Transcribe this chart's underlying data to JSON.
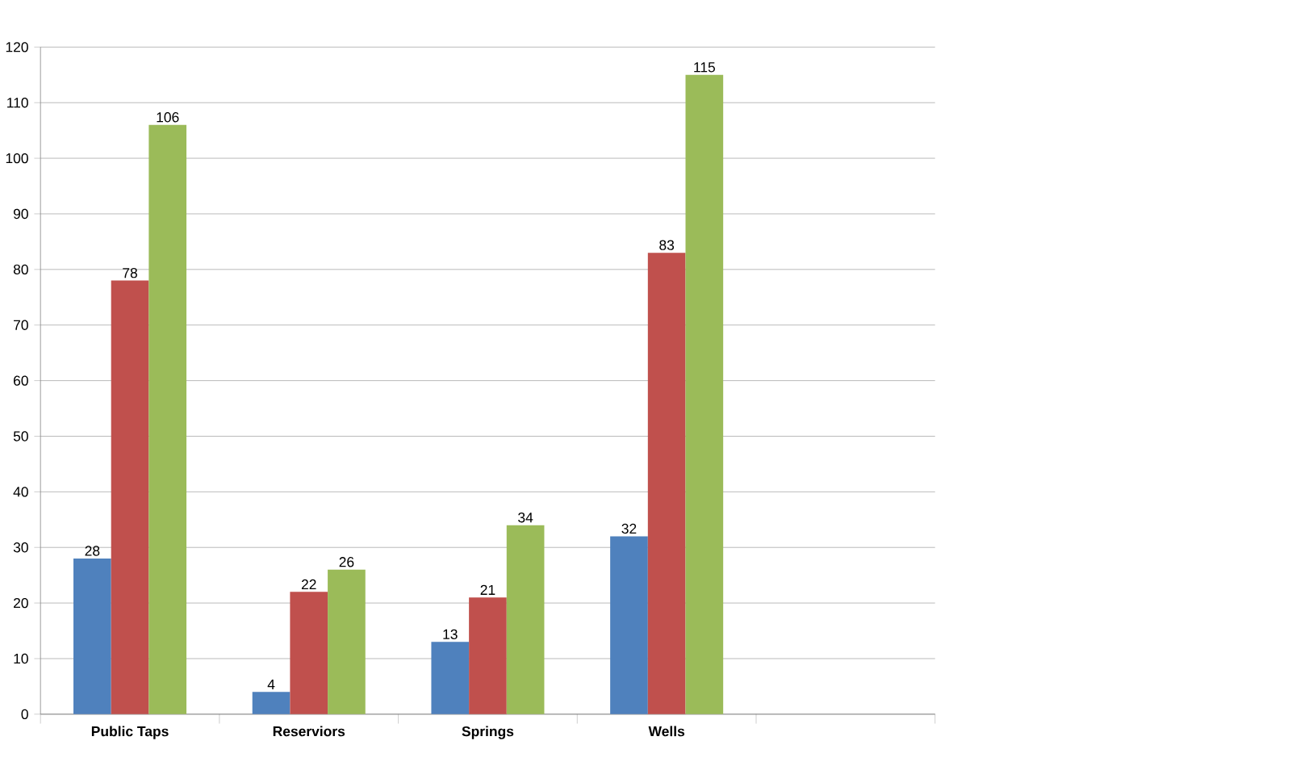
{
  "chart_data": {
    "type": "bar",
    "categories": [
      "Public Taps",
      "Reserviors",
      "Springs",
      "Wells",
      null
    ],
    "series": [
      {
        "color": "#4f81bd",
        "values": [
          28,
          4,
          13,
          32,
          null
        ]
      },
      {
        "color": "#c0504d",
        "values": [
          78,
          22,
          21,
          83,
          null
        ]
      },
      {
        "color": "#9bbb59",
        "values": [
          106,
          26,
          34,
          115,
          null
        ]
      }
    ],
    "ylim": [
      0,
      120
    ],
    "yticks": [
      0,
      10,
      20,
      30,
      40,
      50,
      60,
      70,
      80,
      90,
      100,
      110,
      120
    ],
    "grid": "y",
    "data_labels": true
  }
}
